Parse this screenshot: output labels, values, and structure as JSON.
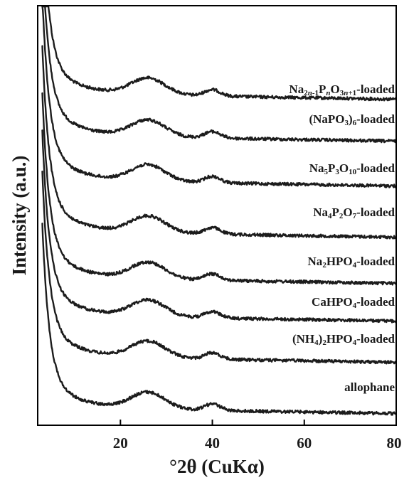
{
  "chart_data": {
    "type": "line",
    "xlabel": "°2θ (CuKα)",
    "ylabel": "Intensity (a.u.)",
    "xlim": [
      2,
      80
    ],
    "x_ticks": [
      20,
      40,
      60,
      80
    ],
    "y_tick_labels": "none",
    "grid": false,
    "legend": "labels placed inline at right end of each trace",
    "peaks_2theta": [
      26,
      40
    ],
    "series": [
      {
        "name": "Na2n-1PnO3n+1-loaded",
        "label_html": "Na<sub>2<i>n</i>-1</sub>P<sub><i>n</i></sub>O<sub>3<i>n</i>+1</sub>-loaded",
        "offset": 7
      },
      {
        "name": "(NaPO3)6-loaded",
        "label_html": "(NaPO<sub>3</sub>)<sub>6</sub>-loaded",
        "offset": 6
      },
      {
        "name": "Na5P3O10-loaded",
        "label_html": "Na<sub>5</sub>P<sub>3</sub>O<sub>10</sub>-loaded",
        "offset": 5
      },
      {
        "name": "Na4P2O7-loaded",
        "label_html": "Na<sub>4</sub>P<sub>2</sub>O<sub>7</sub>-loaded",
        "offset": 4
      },
      {
        "name": "Na2HPO4-loaded",
        "label_html": "Na<sub>2</sub>HPO<sub>4</sub>-loaded",
        "offset": 3
      },
      {
        "name": "CaHPO4-loaded",
        "label_html": "CaHPO<sub>4</sub>-loaded",
        "offset": 2
      },
      {
        "name": "(NH4)2HPO4-loaded",
        "label_html": "(NH<sub>4</sub>)<sub>2</sub>HPO<sub>4</sub>-loaded",
        "offset": 1
      },
      {
        "name": "allophane",
        "label_html": "allophane",
        "offset": 0
      }
    ]
  }
}
